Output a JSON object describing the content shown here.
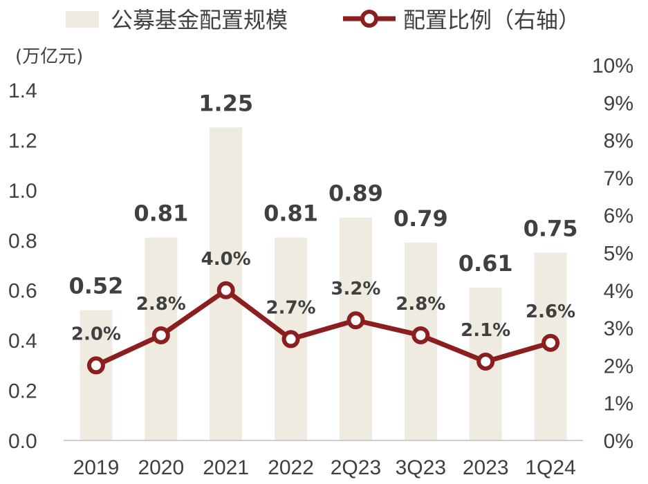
{
  "chart_data": {
    "type": "bar+line",
    "categories": [
      "2019",
      "2020",
      "2021",
      "2022",
      "2Q23",
      "3Q23",
      "2023",
      "1Q24"
    ],
    "series": [
      {
        "name": "公募基金配置规模",
        "kind": "bar",
        "axis": "left",
        "values": [
          0.52,
          0.81,
          1.25,
          0.81,
          0.89,
          0.79,
          0.61,
          0.75
        ],
        "labels": [
          "0.52",
          "0.81",
          "1.25",
          "0.81",
          "0.89",
          "0.79",
          "0.61",
          "0.75"
        ],
        "color": "#EFEBE1"
      },
      {
        "name": "配置比例（右轴）",
        "kind": "line",
        "axis": "right",
        "values": [
          2.0,
          2.8,
          4.0,
          2.7,
          3.2,
          2.8,
          2.1,
          2.6
        ],
        "labels": [
          "2.0%",
          "2.8%",
          "4.0%",
          "2.7%",
          "3.2%",
          "2.8%",
          "2.1%",
          "2.6%"
        ],
        "color": "#8B1E1E"
      }
    ],
    "left_axis": {
      "unit_label": "(万亿元)",
      "ylim": [
        0,
        1.4
      ],
      "ticks": [
        "0.0",
        "0.2",
        "0.4",
        "0.6",
        "0.8",
        "1.0",
        "1.2",
        "1.4"
      ]
    },
    "right_axis": {
      "ylim": [
        0,
        10
      ],
      "ticks": [
        "0%",
        "1%",
        "2%",
        "3%",
        "4%",
        "5%",
        "6%",
        "7%",
        "8%",
        "9%",
        "10%"
      ]
    },
    "legend": {
      "position": "top",
      "items": [
        {
          "label": "公募基金配置规模",
          "symbol": "bar"
        },
        {
          "label": "配置比例（右轴）",
          "symbol": "line-marker"
        }
      ]
    },
    "grid": false
  }
}
